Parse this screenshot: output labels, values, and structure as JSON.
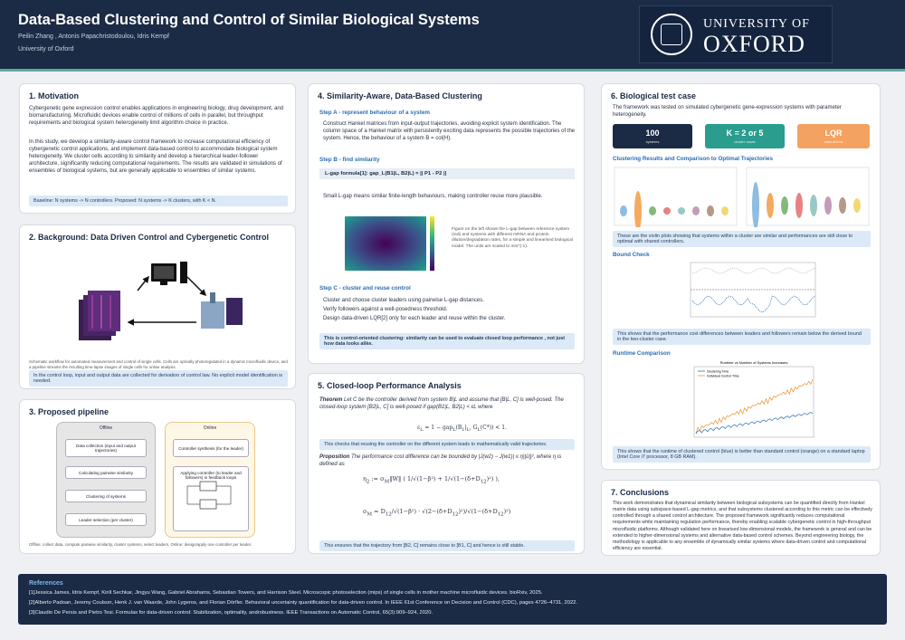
{
  "header": {
    "title": "Data-Based Clustering and Control of Similar Biological Systems",
    "authors": "Peilin Zhang , Antonis Papachristodoulou, Idris Kempf",
    "affiliation": "University of Oxford",
    "logo_line1": "UNIVERSITY OF",
    "logo_line2": "OXFORD"
  },
  "s1": {
    "title": "1. Motivation",
    "p1": "Cybergenetic gene expression control enables applications in engineering biology, drug development, and biomanufacturing. Microfluidic devices enable control of millions of cells in parallel, but throughput requirements and biological system heterogeneity limit algorithm choice in practice.",
    "p2": "In this study, we develop a similarity-aware control framework to increase computational efficiency of cybergenetic control applications, and implement data-based control to accommodate biological system heterogeneity. We cluster cells according to similarity and develop a hierarchical leader-follower architecture, significantly reducing computational requirements. The results are validated in simulations of ensembles of biological systems, but are generally applicable to ensembles of similar systems.",
    "note": "Baseline: N systems -> N controllers.  Proposed: N systems -> K clusters, with K < N."
  },
  "s2": {
    "title": "2. Background: Data Driven Control and Cybergenetic Control",
    "caption": "Schematic workflow for automated measurement and control of single cells. Cells are optically photoregulated in a dynamic microfluidic device, and a pipeline streams the resulting time-lapse images of single cells for online analysis.",
    "note": "In the control loop, input and output data are collected for derivation of control law. No explicit model identification is needed."
  },
  "s3": {
    "title": "3. Proposed pipeline",
    "offline": "Offline",
    "online": "Online",
    "steps": [
      "Data collection (input and output trajectories)",
      "Calculating pairwise similarity",
      "Clustering of systems",
      "Leader selection (per cluster)"
    ],
    "synth": "Controller synthesis (for the leader)",
    "apply": "Applying controller (to leader and followers) in feedback loops",
    "note": "Offline: collect data, compute pairwise similarity, cluster systems, select leaders. Online: design/apply one controller per leader."
  },
  "s4": {
    "title": "4. Similarity-Aware, Data-Based Clustering",
    "stepA": "Step A - represent behaviour of a system",
    "textA": "Construct Hankel matrices from input-output trajectories, avoiding explicit system identification. The column space of a Hankel matrix with persistently exciting data represents the possible trajectories of the system. Hence, the behaviour of a system B = col(H).",
    "stepB": "Step B - find similarity",
    "formula": "L-gap formula[1]:  gap_L(B1|L, B2|L) = || P1 - P2 ||",
    "textB": "Small L-gap means similar finite-length behaviours, making controller reuse more plausible.",
    "fig_caption": "Figure on the left shows the L-gap between reference system (red) and systems with different mRNA and protein dilution/degradation rates, for a simple and linearised biological model. The units are scaled to min^(-1).",
    "stepC": "Step C - cluster and reuse control",
    "textC1": "Cluster and choose cluster leaders using pairwise L-gap distances.",
    "textC2": "Verify followers against a well-posedness threshold.",
    "textC3": "Design data-driven LQR[2] only for each leader and reuse within the cluster.",
    "note": "This is control-oriented clustering: similarity can be used to evaluate closed loop performance , not just how data looks alike."
  },
  "s5": {
    "title": "5. Closed-loop Performance Analysis",
    "theorem": "Theorem",
    "theorem_text": "Let C be the controller derived from system B|L and assume that [B|L, C] is well-posed. The closed-loop system [B2|L, C] is well-posed if gap(B1|L, B2|L) < εL where",
    "note1": "This checks that reusing the controller on the different system leads to mathematically valid trajectories.",
    "proposition": "Proposition",
    "prop_text": "The performance cost difference can be bounded by |J(w2) − J(w1)| ≤ η||ū||², where η is defined as",
    "note2": "This ensures that the trajectory from [B2, C] remains close to [B1, C] and hence is still stable."
  },
  "s6": {
    "title": "6. Biological test case",
    "intro": "The framework was tested on simulated cybergenetic gene-expression systems with parameter heterogeneity.",
    "stats": [
      {
        "value": "100",
        "label": "systems",
        "color": "#1b2a45"
      },
      {
        "value": "K = 2 or 5",
        "label": "cluster cases",
        "color": "#2a9d8f"
      },
      {
        "value": "LQR",
        "label": "data-driven",
        "color": "#f4a261"
      }
    ],
    "sub1": "Clustering Results and Comparison to Optimal Trajectories",
    "note1": "These are the violin plots showing that systems within a cluster are similar and performances are still close to optimal with shared controllers.",
    "sub2": "Bound Check",
    "note2": "This shows that the performance cost differences between leaders and followers remain below the derived bound in the two-cluster case.",
    "sub3": "Runtime Comparison",
    "chart_title": "Runtime vs Number of Systems Increases",
    "legend_a": "Clustering Time",
    "legend_b": "Individual Control Time",
    "note3": "This shows that the runtime of clustered control (blue) is better than standard control (orange) on a standard laptop (Intel Core i7 processor, 8 GB RAM)."
  },
  "s7": {
    "title": "7. Conclusions",
    "text": "This work demonstrates that dynamical similarity between biological subsystems can be quantified directly from Hankel matrix data using subspace-based L-gap metrics, and that subsystems clustered according to this metric can be effectively controlled through a shared control architecture. The proposed framework significantly reduces computational requirements while maintaining regulation performance, thereby enabling scalable cybergenetic control in high-throughput microfluidic platforms. Although validated here on linearised low-dimensional models, the framework is general and can be extended to higher-dimensional systems and alternative data-based control schemes. Beyond engineering biology, the methodology is applicable to any ensemble of dynamically similar systems where data-driven control and computational efficiency are essential."
  },
  "refs": {
    "title": "References",
    "r1": "[1]Jessica James, Idris Kempf, Kirill Sechkar, Jingyu Wang, Gabriel Abrahams, Sebastian Towers, and Harrison Steel. Microscopic photoselection (mips) of single cells in mother machine microfluidic devices. bioRxiv, 2025.",
    "r2": "[2]Alberto Padoan, Jeremy Coulson, Henk J. van Waarde, John Lygeros, and Florian Dörfler. Behavioral uncertainty quantification for data-driven control. In IEEE 61st Conference on Decision and Control (CDC), pages 4726–4731, 2022.",
    "r3": "[3]Claudio De Persis and Pietro Tesi. Formulas for data-driven control: Stabilization, optimality, androbustness. IEEE Transactions on Automatic Control, 65(3):909–924, 2020."
  },
  "colors": {
    "navy": "#1b2a45",
    "blue_note": "#dce9f6",
    "accent": "#2a6eb5",
    "teal": "#5ea89a"
  }
}
